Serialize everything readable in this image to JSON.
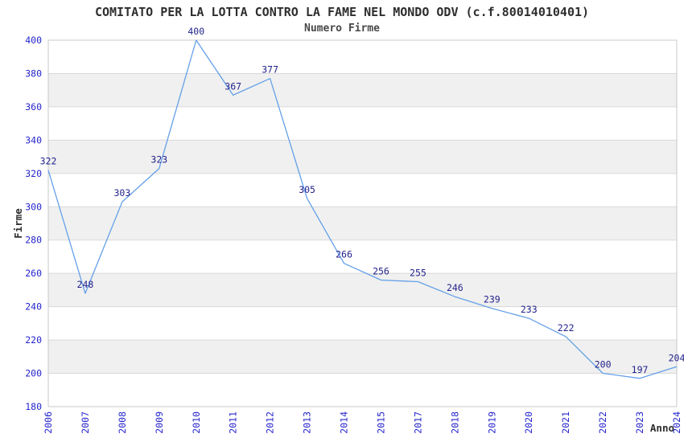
{
  "chart_data": {
    "type": "line",
    "title": "COMITATO PER LA LOTTA CONTRO LA FAME NEL MONDO ODV (c.f.80014010401)",
    "subtitle": "Numero Firme",
    "xlabel": "Anno",
    "ylabel": "Firme",
    "categories": [
      "2006",
      "2007",
      "2008",
      "2009",
      "2010",
      "2011",
      "2012",
      "2013",
      "2014",
      "2015",
      "2017",
      "2018",
      "2019",
      "2020",
      "2021",
      "2022",
      "2023",
      "2024"
    ],
    "values": [
      322,
      248,
      303,
      323,
      400,
      367,
      377,
      305,
      266,
      256,
      255,
      246,
      239,
      233,
      222,
      200,
      197,
      204
    ],
    "ylim": [
      180,
      400
    ],
    "ytick_step": 20,
    "grid": "horizontal-lines-with-alternating-bands",
    "legend": "none",
    "colors": {
      "line": "#64a0e8",
      "value_label": "#22228c",
      "tick_label": "#2525cc",
      "band": "#f0f0f0",
      "gridline": "#d9d9d9",
      "border": "#c8c8c8",
      "title": "#2e2e2e",
      "subtitle": "#484848",
      "axis_title": "#2e2e2e"
    }
  }
}
